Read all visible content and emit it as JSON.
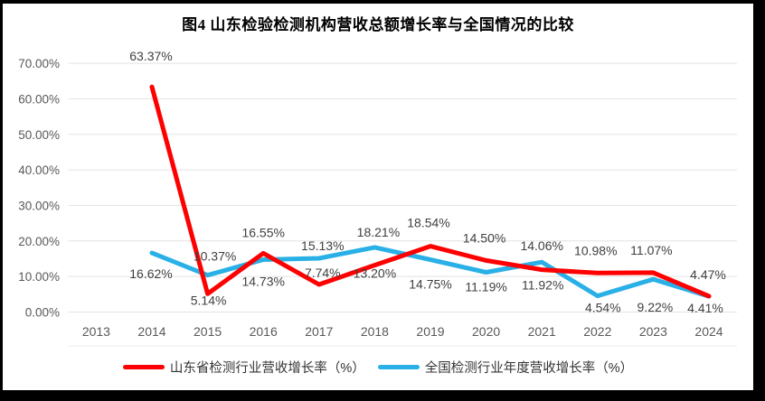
{
  "chart_data": {
    "type": "line",
    "title": "图4  山东检验检测机构营收总额增长率与全国情况的比较",
    "categories": [
      "2013",
      "2014",
      "2015",
      "2016",
      "2017",
      "2018",
      "2019",
      "2020",
      "2021",
      "2022",
      "2023",
      "2024"
    ],
    "y_axis": {
      "min": 0,
      "max": 70,
      "step": 10,
      "tick_labels": [
        "0.00%",
        "10.00%",
        "20.00%",
        "30.00%",
        "40.00%",
        "50.00%",
        "60.00%",
        "70.00%"
      ]
    },
    "grid": true,
    "legend_position": "bottom",
    "series": [
      {
        "name": "山东省检测行业营收增长率（%）",
        "color": "#fe0000",
        "values": [
          null,
          63.37,
          5.14,
          16.55,
          7.74,
          13.2,
          18.54,
          14.5,
          11.92,
          10.98,
          11.07,
          4.47
        ],
        "labels": [
          null,
          "63.37%",
          "5.14%",
          "16.55%",
          "7.74%",
          "13.20%",
          "18.54%",
          "14.50%",
          "11.92%",
          "10.98%",
          "11.07%",
          "4.47%"
        ],
        "label_offsets": [
          null,
          [
            -1,
            -34
          ],
          [
            1,
            7
          ],
          [
            0,
            -23
          ],
          [
            4,
            -13
          ],
          [
            0,
            9
          ],
          [
            -2,
            -26
          ],
          [
            -2,
            -25
          ],
          [
            1,
            17
          ],
          [
            -2,
            -25
          ],
          [
            -2,
            -25
          ],
          [
            -1,
            -24
          ]
        ]
      },
      {
        "name": "全国检测行业年度营收增长率（%）",
        "color": "#29b0e6",
        "values": [
          null,
          16.62,
          10.37,
          14.73,
          15.13,
          18.21,
          14.75,
          11.19,
          14.06,
          4.54,
          9.22,
          4.41
        ],
        "labels": [
          null,
          "16.62%",
          "10.37%",
          "14.73%",
          "15.13%",
          "18.21%",
          "14.75%",
          "11.19%",
          "14.06%",
          "4.54%",
          "9.22%",
          "4.41%"
        ],
        "label_offsets": [
          null,
          [
            -1,
            23
          ],
          [
            8,
            -21
          ],
          [
            0,
            24
          ],
          [
            4,
            -14
          ],
          [
            4,
            -17
          ],
          [
            0,
            27
          ],
          [
            0,
            16
          ],
          [
            0,
            -18
          ],
          [
            6,
            13
          ],
          [
            2,
            31
          ],
          [
            -4,
            13
          ]
        ]
      }
    ],
    "line_width": 5,
    "gridline_color": "#e3e3e3"
  }
}
